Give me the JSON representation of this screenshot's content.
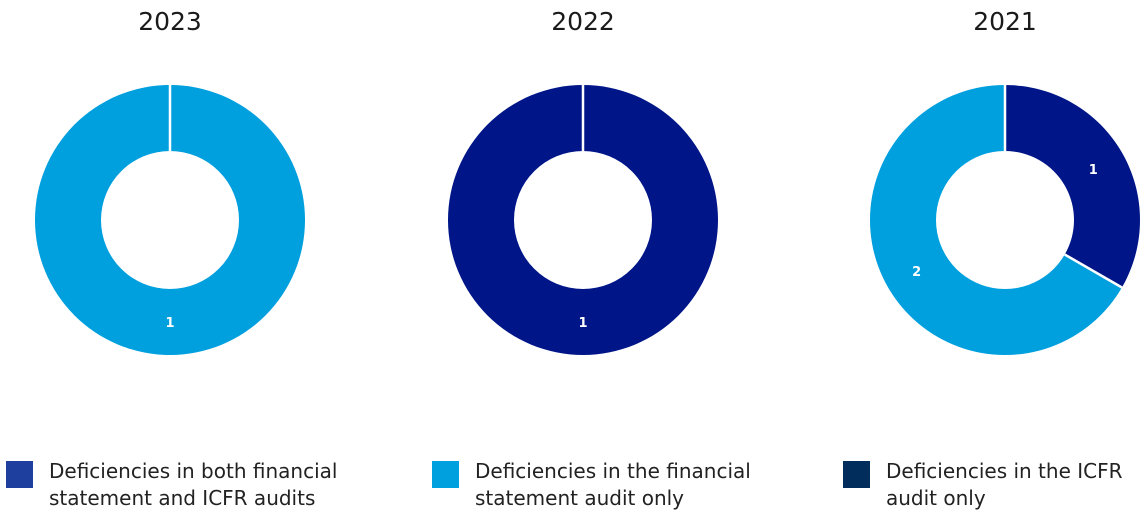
{
  "chart_data": [
    {
      "type": "pie",
      "title": "2023",
      "slices": [
        {
          "series_index": 1,
          "value": 1,
          "label": "1"
        }
      ]
    },
    {
      "type": "pie",
      "title": "2022",
      "slices": [
        {
          "series_index": 0,
          "value": 1,
          "label": "1"
        }
      ]
    },
    {
      "type": "pie",
      "title": "2021",
      "slices": [
        {
          "series_index": 0,
          "value": 1,
          "label": "1"
        },
        {
          "series_index": 1,
          "value": 2,
          "label": "2"
        }
      ]
    }
  ],
  "slice_colors": [
    "#001688",
    "#009fde",
    "#002d5c"
  ],
  "legend": {
    "items": [
      {
        "label": "Deficiencies in both financial statement and ICFR audits",
        "color": "#1f3f9e"
      },
      {
        "label": "Deficiencies in the financial statement audit only",
        "color": "#009fde"
      },
      {
        "label": "Deficiencies in the ICFR audit only",
        "color": "#002d5c"
      }
    ]
  }
}
